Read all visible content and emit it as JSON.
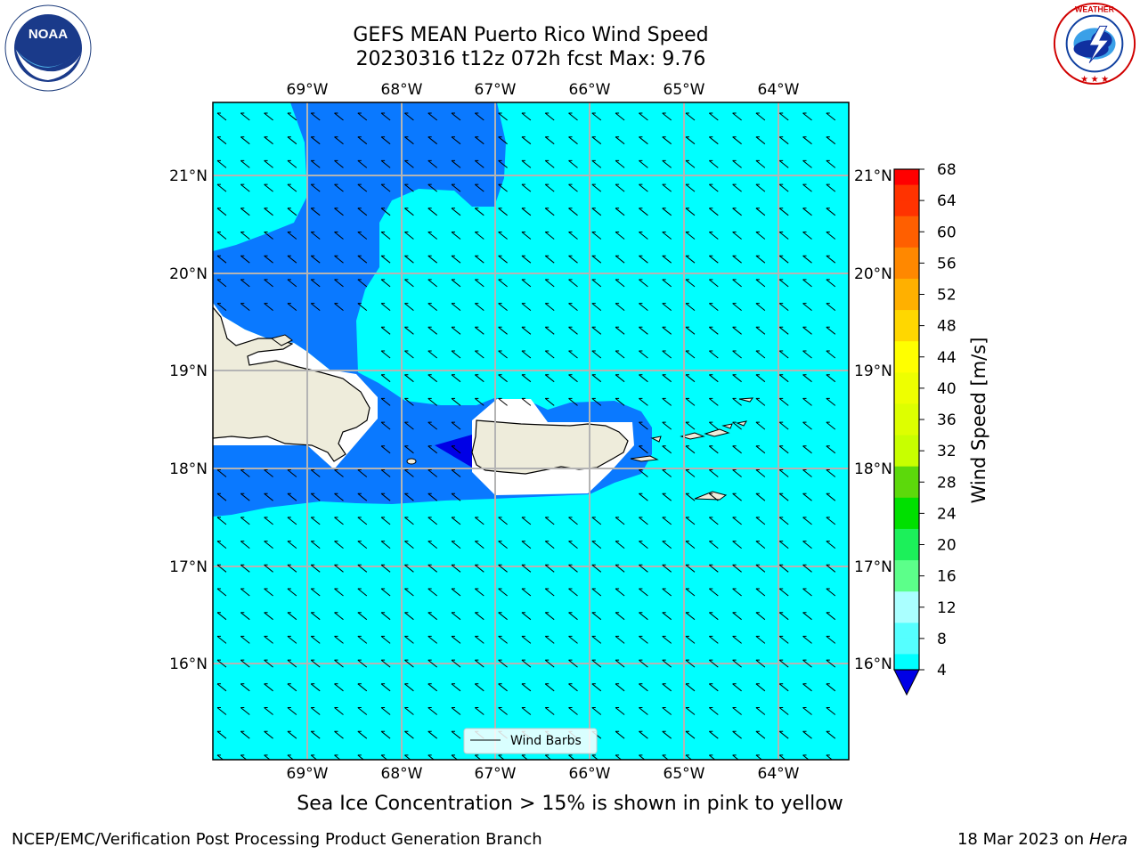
{
  "header": {
    "title_line1": "GEFS MEAN Puerto Rico Wind Speed",
    "title_line2": "20230316 t12z 072h fcst   Max: 9.76"
  },
  "logos": {
    "noaa_text": "NOAA",
    "noaa_ring_text": "NATIONAL OCEANIC AND ATMOSPHERIC ADMINISTRATION · U.S. DEPARTMENT OF COMMERCE",
    "nws_ring_text": "NATIONAL WEATHER SERVICE"
  },
  "map": {
    "lon_labels": [
      "69°W",
      "68°W",
      "67°W",
      "66°W",
      "65°W",
      "64°W"
    ],
    "lat_labels": [
      "21°N",
      "20°N",
      "19°N",
      "18°N",
      "17°N",
      "16°N"
    ],
    "legend_label": "Wind Barbs",
    "colors": {
      "land": "#eeecdb",
      "speed_4_8": "#0a79ff",
      "speed_8_12": "#00ffff",
      "speed_under_4": "#0000e6",
      "grid": "#b4b4b4"
    }
  },
  "colorbar": {
    "label": "Wind Speed [m/s]",
    "ticks": [
      "68",
      "64",
      "60",
      "56",
      "52",
      "48",
      "44",
      "40",
      "36",
      "32",
      "28",
      "24",
      "20",
      "16",
      "12",
      "8",
      "4"
    ],
    "colors": [
      "#ff0000",
      "#ff3300",
      "#ff5f00",
      "#ff8800",
      "#ffb000",
      "#ffd700",
      "#ffff00",
      "#eeff00",
      "#ddff00",
      "#c8ff00",
      "#5cd90b",
      "#00e000",
      "#1cf05a",
      "#5cff8a",
      "#aaffff",
      "#55ffff",
      "#00ffff",
      "#0a79ff"
    ],
    "under_color": "#0000e6"
  },
  "caption": "Sea Ice Concentration > 15% is shown in pink to yellow",
  "footer": {
    "left": "NCEP/EMC/Verification Post Processing Product Generation Branch",
    "right_date": "18 Mar 2023 on",
    "right_machine": "Hera"
  }
}
